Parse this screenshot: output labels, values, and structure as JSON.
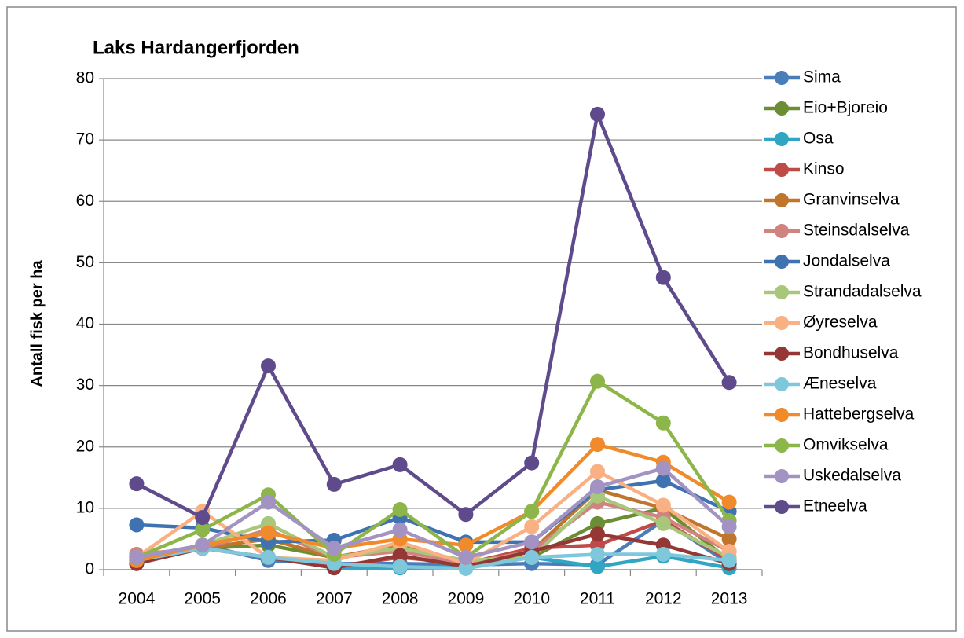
{
  "chart_data": {
    "type": "line",
    "title": "Laks Hardangerfjorden",
    "y_label": "Antall fisk per ha",
    "categories": [
      "2004",
      "2005",
      "2006",
      "2007",
      "2008",
      "2009",
      "2010",
      "2011",
      "2012",
      "2013"
    ],
    "ylim": [
      0,
      80
    ],
    "yticks": [
      0,
      10,
      20,
      30,
      40,
      50,
      60,
      70,
      80
    ],
    "grid": true,
    "legend": "right",
    "series": [
      {
        "name": "Sima",
        "color": "#4a7ebb",
        "values": [
          2,
          4,
          1.5,
          1,
          1,
          0.8,
          1,
          0.8,
          8,
          1
        ]
      },
      {
        "name": "Eio+Bjoreio",
        "color": "#6b8e34",
        "values": [
          2,
          3.5,
          4,
          2,
          3.5,
          1,
          2,
          7.5,
          10,
          1.5
        ]
      },
      {
        "name": "Osa",
        "color": "#31a6c2",
        "values": [
          1.5,
          3.5,
          2,
          0.3,
          0.3,
          0.5,
          2,
          0.5,
          2.2,
          0.3
        ]
      },
      {
        "name": "Kinso",
        "color": "#be4b48",
        "values": [
          1,
          3.5,
          2,
          0.5,
          2,
          1,
          3.5,
          4,
          8,
          1.5
        ]
      },
      {
        "name": "Granvinselva",
        "color": "#c0752d",
        "values": [
          1.5,
          3.5,
          5,
          2,
          4,
          1,
          3,
          13,
          10,
          5
        ]
      },
      {
        "name": "Steinsdalselva",
        "color": "#d0837f",
        "values": [
          2.5,
          3.5,
          6.5,
          2,
          3,
          1,
          3,
          11,
          8.5,
          3
        ]
      },
      {
        "name": "Jondalselva",
        "color": "#3f72b0",
        "values": [
          7.3,
          6.8,
          4.5,
          4.8,
          8.5,
          4.5,
          4.5,
          13,
          14.5,
          9.5
        ]
      },
      {
        "name": "Strandadalselva",
        "color": "#a9c77a",
        "values": [
          2,
          4,
          7.5,
          2,
          3.5,
          1.5,
          2,
          12,
          7.5,
          2
        ]
      },
      {
        "name": "Øyreselva",
        "color": "#f9b183",
        "values": [
          2,
          9.5,
          2,
          1.5,
          4.5,
          1,
          7,
          16,
          10.5,
          3
        ]
      },
      {
        "name": "Bondhuselva",
        "color": "#953735",
        "values": [
          1,
          3.5,
          2,
          0.3,
          2.3,
          0.5,
          3,
          5.8,
          4,
          1
        ]
      },
      {
        "name": "Æneselva",
        "color": "#7fc7db",
        "values": [
          1.5,
          3.5,
          2,
          1,
          0.5,
          0.2,
          2,
          2.5,
          2.5,
          1.5
        ]
      },
      {
        "name": "Hattebergselva",
        "color": "#f08a2b",
        "values": [
          1.5,
          4,
          6,
          3.5,
          5,
          4,
          9.5,
          20.4,
          17.5,
          11
        ]
      },
      {
        "name": "Omvikselva",
        "color": "#8db64a",
        "values": [
          2,
          6.5,
          12.2,
          2.5,
          9.8,
          2,
          9.5,
          30.7,
          23.9,
          8
        ]
      },
      {
        "name": "Uskedalselva",
        "color": "#a393c2",
        "values": [
          2,
          4,
          11,
          3.5,
          6.5,
          2,
          4.5,
          13.5,
          16.5,
          7
        ]
      },
      {
        "name": "Etneelva",
        "color": "#5f4b8b",
        "values": [
          14,
          8.5,
          33.2,
          13.9,
          17.1,
          9,
          17.4,
          74.2,
          47.6,
          30.5
        ]
      }
    ]
  }
}
